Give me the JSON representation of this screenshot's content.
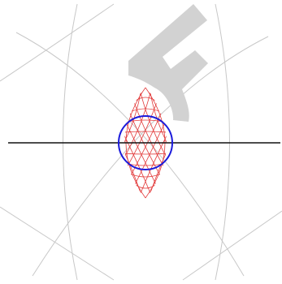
{
  "colors": {
    "background": "#ffffff",
    "outer_arcs": "#c8c8c8",
    "f_shape": "#d2d2d2",
    "grid": "#e23b3b",
    "circle": "#1a1adb",
    "axis": "#111111"
  },
  "shapes": {
    "letter_shape": "F",
    "circle_present": true,
    "axis_present": true
  }
}
